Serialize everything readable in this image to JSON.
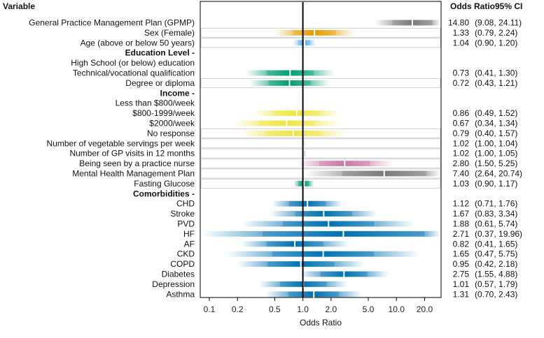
{
  "chart_data": {
    "type": "forest",
    "title": "",
    "xlabel": "Odds Ratio",
    "x_scale": "log",
    "xlim": [
      0.08,
      30
    ],
    "reference_line": 1.0,
    "x_ticks": [
      {
        "value": 0.1,
        "label": "0.1"
      },
      {
        "value": 0.2,
        "label": "0.2"
      },
      {
        "value": 0.5,
        "label": "0.5"
      },
      {
        "value": 1.0,
        "label": "1.0"
      },
      {
        "value": 2.0,
        "label": "2.0"
      },
      {
        "value": 5.0,
        "label": "5.0"
      },
      {
        "value": 10.0,
        "label": "10.0"
      },
      {
        "value": 20.0,
        "label": "20.0"
      }
    ],
    "column_headers": {
      "variable": "Variable",
      "or": "Odds Ratio",
      "ci": "95% CI"
    },
    "rows": [
      {
        "label": "General Practice Management Plan (GPMP)",
        "header": false,
        "or": 14.8,
        "lo": 9.08,
        "hi": 24.11,
        "or_text": "14.80",
        "ci_text": "(9.08, 24.11)",
        "color": "#7a7a7a",
        "boxed": false
      },
      {
        "label": "Sex (Female)",
        "header": false,
        "or": 1.33,
        "lo": 0.79,
        "hi": 2.24,
        "or_text": "1.33",
        "ci_text": "(0.79, 2.24)",
        "color": "#e69f00",
        "boxed": true
      },
      {
        "label": "Age (above or below 50 years)",
        "header": false,
        "or": 1.04,
        "lo": 0.9,
        "hi": 1.2,
        "or_text": "1.04",
        "ci_text": "(0.90, 1.20)",
        "color": "#56b4e9",
        "boxed": true
      },
      {
        "label": "Education Level -",
        "header": true
      },
      {
        "label": "High School (or below) education",
        "header": false,
        "or": null
      },
      {
        "label": "Technical/vocational qualification",
        "header": false,
        "or": 0.73,
        "lo": 0.41,
        "hi": 1.3,
        "or_text": "0.73",
        "ci_text": "(0.41, 1.30)",
        "color": "#009e73",
        "boxed": false
      },
      {
        "label": "Degree or diploma",
        "header": false,
        "or": 0.72,
        "lo": 0.43,
        "hi": 1.21,
        "or_text": "0.72",
        "ci_text": "(0.43, 1.21)",
        "color": "#009e73",
        "boxed": true
      },
      {
        "label": "Income -",
        "header": true
      },
      {
        "label": "Less than $800/week",
        "header": false,
        "or": null
      },
      {
        "label": "$800-1999/week",
        "header": false,
        "or": 0.86,
        "lo": 0.49,
        "hi": 1.52,
        "or_text": "0.86",
        "ci_text": "(0.49, 1.52)",
        "color": "#f0e442",
        "boxed": false
      },
      {
        "label": "$2000/week",
        "header": false,
        "or": 0.67,
        "lo": 0.34,
        "hi": 1.34,
        "or_text": "0.67",
        "ci_text": "(0.34, 1.34)",
        "color": "#f0e442",
        "boxed": false
      },
      {
        "label": "No response",
        "header": false,
        "or": 0.79,
        "lo": 0.4,
        "hi": 1.57,
        "or_text": "0.79",
        "ci_text": "(0.40, 1.57)",
        "color": "#f0e442",
        "boxed": true
      },
      {
        "label": "Number of vegetable servings per week",
        "header": false,
        "or": 1.02,
        "lo": 1.0,
        "hi": 1.04,
        "or_text": "1.02",
        "ci_text": "(1.00, 1.04)",
        "color": "#aaaaaa",
        "boxed": true
      },
      {
        "label": "Number of GP visits in 12 months",
        "header": false,
        "or": 1.02,
        "lo": 1.0,
        "hi": 1.05,
        "or_text": "1.02",
        "ci_text": "(1.00, 1.05)",
        "color": "#aaaaaa",
        "boxed": true
      },
      {
        "label": "Being seen by a practice nurse",
        "header": false,
        "or": 2.8,
        "lo": 1.5,
        "hi": 5.25,
        "or_text": "2.80",
        "ci_text": "(1.50, 5.25)",
        "color": "#cc79a7",
        "boxed": true
      },
      {
        "label": "Mental Health Management Plan",
        "header": false,
        "or": 7.4,
        "lo": 2.64,
        "hi": 20.74,
        "or_text": "7.40",
        "ci_text": "(2.64, 20.74)",
        "color": "#7a7a7a",
        "boxed": true
      },
      {
        "label": "Fasting Glucose",
        "header": false,
        "or": 1.03,
        "lo": 0.9,
        "hi": 1.17,
        "or_text": "1.03",
        "ci_text": "(0.90, 1.17)",
        "color": "#009e73",
        "boxed": true
      },
      {
        "label": "Comorbidities -",
        "header": true
      },
      {
        "label": "CHD",
        "header": false,
        "or": 1.12,
        "lo": 0.71,
        "hi": 1.76,
        "or_text": "1.12",
        "ci_text": "(0.71, 1.76)",
        "color": "#0072b2",
        "boxed": false
      },
      {
        "label": "Stroke",
        "header": false,
        "or": 1.67,
        "lo": 0.83,
        "hi": 3.34,
        "or_text": "1.67",
        "ci_text": "(0.83, 3.34)",
        "color": "#0072b2",
        "boxed": false
      },
      {
        "label": "PVD",
        "header": false,
        "or": 1.88,
        "lo": 0.61,
        "hi": 5.74,
        "or_text": "1.88",
        "ci_text": "(0.61, 5.74)",
        "color": "#0072b2",
        "boxed": false
      },
      {
        "label": "HF",
        "header": false,
        "or": 2.71,
        "lo": 0.37,
        "hi": 19.96,
        "or_text": "2.71",
        "ci_text": "(0.37, 19.96)",
        "color": "#0072b2",
        "boxed": false
      },
      {
        "label": "AF",
        "header": false,
        "or": 0.82,
        "lo": 0.41,
        "hi": 1.65,
        "or_text": "0.82",
        "ci_text": "(0.41, 1.65)",
        "color": "#0072b2",
        "boxed": false
      },
      {
        "label": "CKD",
        "header": false,
        "or": 1.65,
        "lo": 0.47,
        "hi": 5.75,
        "or_text": "1.65",
        "ci_text": "(0.47, 5.75)",
        "color": "#0072b2",
        "boxed": false
      },
      {
        "label": "COPD",
        "header": false,
        "or": 0.95,
        "lo": 0.42,
        "hi": 2.18,
        "or_text": "0.95",
        "ci_text": "(0.42, 2.18)",
        "color": "#0072b2",
        "boxed": false
      },
      {
        "label": "Diabetes",
        "header": false,
        "or": 2.75,
        "lo": 1.55,
        "hi": 4.88,
        "or_text": "2.75",
        "ci_text": "(1.55, 4.88)",
        "color": "#0072b2",
        "boxed": false
      },
      {
        "label": "Depression",
        "header": false,
        "or": 1.01,
        "lo": 0.57,
        "hi": 1.79,
        "or_text": "1.01",
        "ci_text": "(0.57, 1.79)",
        "color": "#0072b2",
        "boxed": false
      },
      {
        "label": "Asthma",
        "header": false,
        "or": 1.31,
        "lo": 0.7,
        "hi": 2.43,
        "or_text": "1.31",
        "ci_text": "(0.70, 2.43)",
        "color": "#0072b2",
        "boxed": false
      }
    ]
  }
}
